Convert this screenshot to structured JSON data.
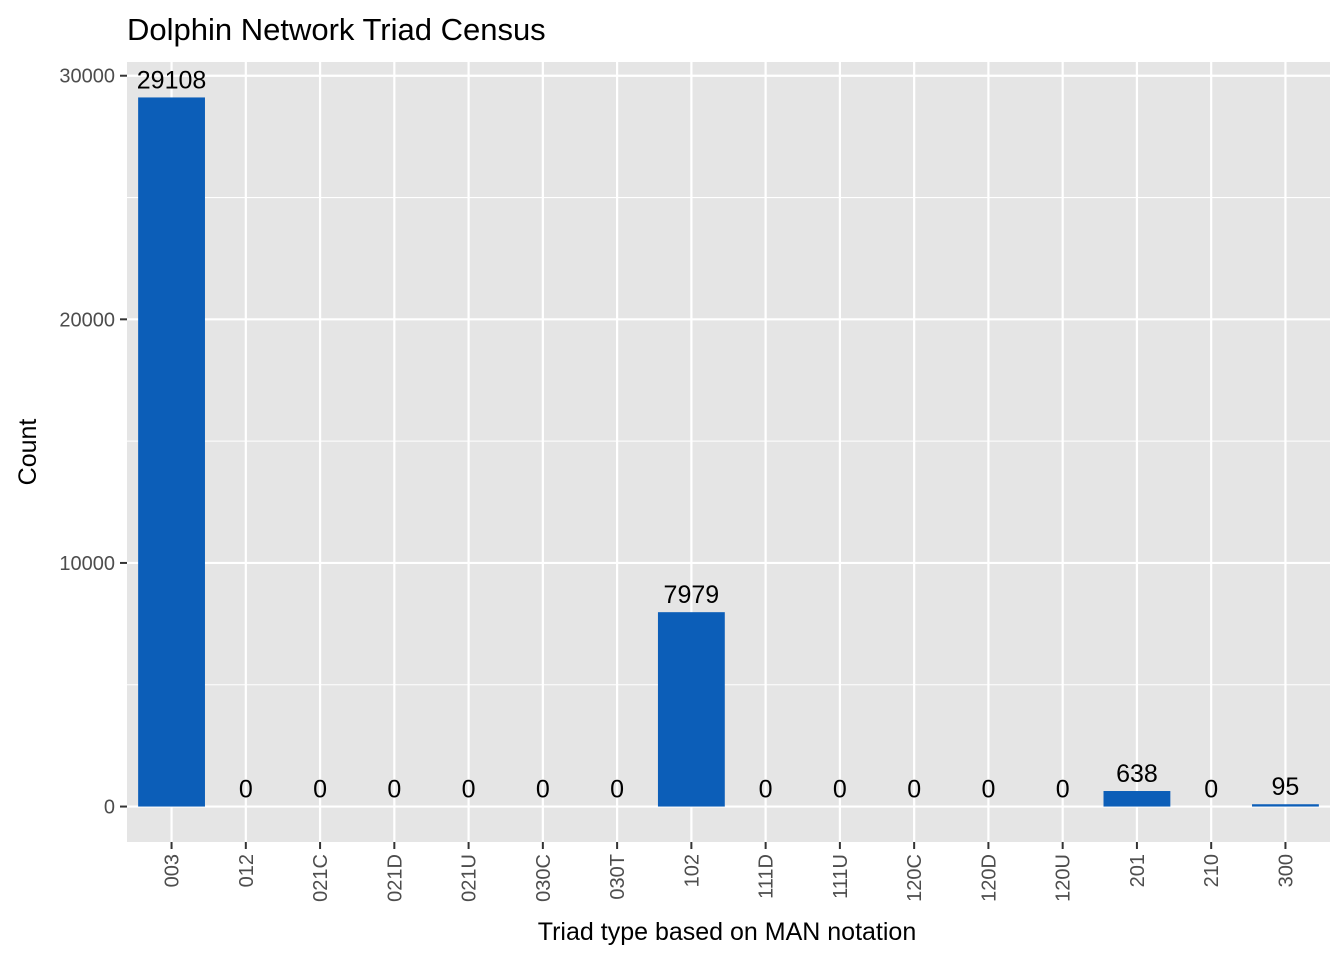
{
  "chart_data": {
    "type": "bar",
    "title": "Dolphin Network Triad Census",
    "xlabel": "Triad type based on MAN notation",
    "ylabel": "Count",
    "categories": [
      "003",
      "012",
      "021C",
      "021D",
      "021U",
      "030C",
      "030T",
      "102",
      "111D",
      "111U",
      "120C",
      "120D",
      "120U",
      "201",
      "210",
      "300"
    ],
    "values": [
      29108,
      0,
      0,
      0,
      0,
      0,
      0,
      7979,
      0,
      0,
      0,
      0,
      0,
      638,
      0,
      95
    ],
    "data_labels": [
      "29108",
      "0",
      "0",
      "0",
      "0",
      "0",
      "0",
      "7979",
      "0",
      "0",
      "0",
      "0",
      "0",
      "638",
      "0",
      "95"
    ],
    "y_ticks": [
      0,
      10000,
      20000,
      30000
    ],
    "y_tick_labels": [
      "0",
      "10000",
      "20000",
      "30000"
    ],
    "ylim": [
      -1455,
      30563
    ],
    "grid": true,
    "colors": {
      "bar": "#0c5eb8",
      "panel": "#e5e5e5",
      "grid": "#ffffff",
      "text": "#000000",
      "tick_text": "#4d4d4d",
      "tick_mark": "#333333"
    }
  }
}
